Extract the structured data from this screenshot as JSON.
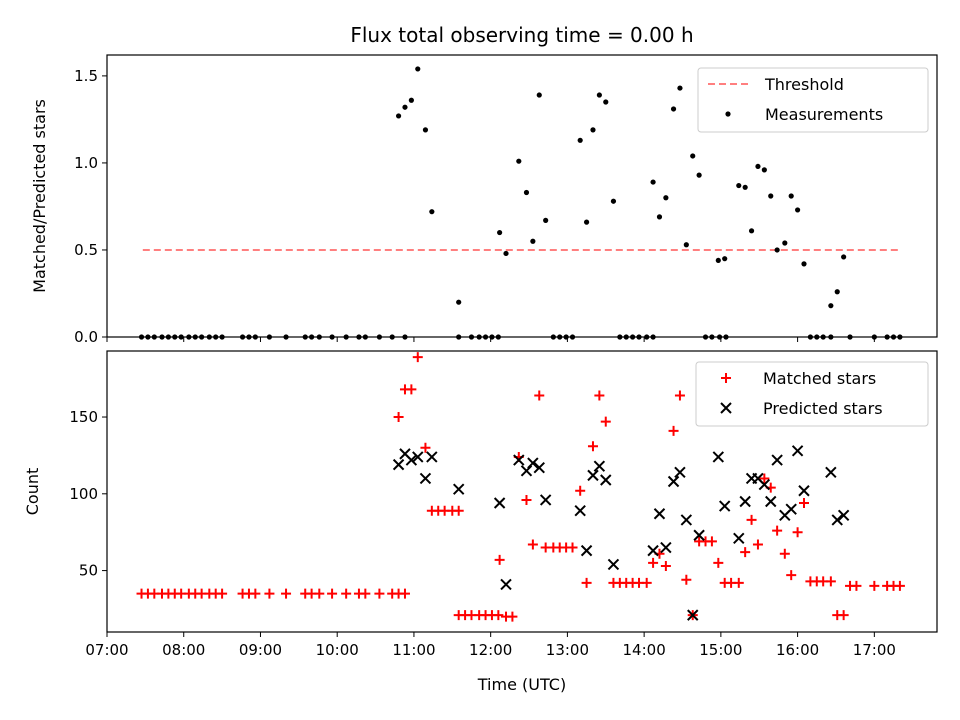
{
  "figure": {
    "title": "Flux total observing time = 0.00 h"
  },
  "chart_data": [
    {
      "type": "scatter",
      "title": "Flux total observing time = 0.00 h",
      "ylabel": "Matched/Predicted stars",
      "xlim": [
        "07:00",
        "17:49"
      ],
      "ylim": [
        0,
        1.62
      ],
      "yticks": [
        "0.0",
        "0.5",
        "1.0",
        "1.5"
      ],
      "xticks": [
        "07:00",
        "08:00",
        "09:00",
        "10:00",
        "11:00",
        "12:00",
        "13:00",
        "14:00",
        "15:00",
        "16:00",
        "17:00"
      ],
      "legend": {
        "placement": "top-right",
        "entries": [
          "Threshold",
          "Measurements"
        ]
      },
      "series": [
        {
          "name": "Threshold",
          "style": "dashed-line",
          "color": "#ff7f7f",
          "points": [
            [
              "07:28",
              0.5
            ],
            [
              "17:20",
              0.5
            ]
          ]
        },
        {
          "name": "Measurements",
          "style": "dot",
          "color": "#000000",
          "points": [
            [
              "07:27",
              0
            ],
            [
              "07:32",
              0
            ],
            [
              "07:37",
              0
            ],
            [
              "07:43",
              0
            ],
            [
              "07:48",
              0
            ],
            [
              "07:53",
              0
            ],
            [
              "07:58",
              0
            ],
            [
              "08:04",
              0
            ],
            [
              "08:09",
              0
            ],
            [
              "08:14",
              0
            ],
            [
              "08:20",
              0
            ],
            [
              "08:25",
              0
            ],
            [
              "08:30",
              0
            ],
            [
              "08:46",
              0
            ],
            [
              "08:51",
              0
            ],
            [
              "08:56",
              0
            ],
            [
              "09:07",
              0
            ],
            [
              "09:20",
              0
            ],
            [
              "09:35",
              0
            ],
            [
              "09:40",
              0
            ],
            [
              "09:46",
              0
            ],
            [
              "09:56",
              0
            ],
            [
              "10:07",
              0
            ],
            [
              "10:17",
              0
            ],
            [
              "10:22",
              0
            ],
            [
              "10:33",
              0
            ],
            [
              "10:43",
              0
            ],
            [
              "10:53",
              0
            ],
            [
              "10:48",
              1.27
            ],
            [
              "10:53",
              1.32
            ],
            [
              "10:58",
              1.36
            ],
            [
              "11:03",
              1.54
            ],
            [
              "11:09",
              1.19
            ],
            [
              "11:14",
              0.72
            ],
            [
              "11:35",
              0
            ],
            [
              "11:45",
              0
            ],
            [
              "11:51",
              0
            ],
            [
              "11:56",
              0
            ],
            [
              "12:01",
              0
            ],
            [
              "12:06",
              0
            ],
            [
              "11:35",
              0.2
            ],
            [
              "12:07",
              0.6
            ],
            [
              "12:12",
              0.48
            ],
            [
              "12:22",
              1.01
            ],
            [
              "12:28",
              0.83
            ],
            [
              "12:33",
              0.55
            ],
            [
              "12:38",
              1.39
            ],
            [
              "12:43",
              0.67
            ],
            [
              "12:49",
              0
            ],
            [
              "12:54",
              0
            ],
            [
              "12:59",
              0
            ],
            [
              "13:04",
              0
            ],
            [
              "13:10",
              1.13
            ],
            [
              "13:15",
              0.66
            ],
            [
              "13:20",
              1.19
            ],
            [
              "13:25",
              1.39
            ],
            [
              "13:30",
              1.35
            ],
            [
              "13:36",
              0.78
            ],
            [
              "13:41",
              0
            ],
            [
              "13:46",
              0
            ],
            [
              "13:51",
              0
            ],
            [
              "13:56",
              0
            ],
            [
              "14:02",
              0
            ],
            [
              "14:07",
              0
            ],
            [
              "14:07",
              0.89
            ],
            [
              "14:12",
              0.69
            ],
            [
              "14:17",
              0.8
            ],
            [
              "14:23",
              1.31
            ],
            [
              "14:28",
              1.43
            ],
            [
              "14:33",
              0.53
            ],
            [
              "14:38",
              1.04
            ],
            [
              "14:43",
              0.93
            ],
            [
              "14:48",
              0
            ],
            [
              "14:53",
              0
            ],
            [
              "14:59",
              0
            ],
            [
              "15:04",
              0
            ],
            [
              "14:58",
              0.44
            ],
            [
              "15:03",
              0.45
            ],
            [
              "15:14",
              0.87
            ],
            [
              "15:19",
              0.86
            ],
            [
              "15:24",
              0.61
            ],
            [
              "15:29",
              0.98
            ],
            [
              "15:34",
              0.96
            ],
            [
              "15:39",
              0.81
            ],
            [
              "15:44",
              0.5
            ],
            [
              "15:50",
              0.54
            ],
            [
              "15:55",
              0.81
            ],
            [
              "16:00",
              0.73
            ],
            [
              "16:05",
              0.42
            ],
            [
              "16:10",
              0
            ],
            [
              "16:15",
              0
            ],
            [
              "16:20",
              0
            ],
            [
              "16:26",
              0
            ],
            [
              "16:26",
              0.18
            ],
            [
              "16:31",
              0.26
            ],
            [
              "16:36",
              0.46
            ],
            [
              "16:41",
              0
            ],
            [
              "17:00",
              0
            ],
            [
              "17:10",
              0
            ],
            [
              "17:15",
              0
            ],
            [
              "17:20",
              0
            ]
          ]
        }
      ]
    },
    {
      "type": "scatter",
      "xlabel": "Time (UTC)",
      "ylabel": "Count",
      "xlim": [
        "07:00",
        "17:49"
      ],
      "ylim": [
        10,
        193
      ],
      "yticks": [
        "50",
        "100",
        "150"
      ],
      "xticks": [
        "07:00",
        "08:00",
        "09:00",
        "10:00",
        "11:00",
        "12:00",
        "13:00",
        "14:00",
        "15:00",
        "16:00",
        "17:00"
      ],
      "legend": {
        "placement": "top-right",
        "entries": [
          "Matched stars",
          "Predicted stars"
        ]
      },
      "series": [
        {
          "name": "Matched stars",
          "marker": "plus",
          "color": "#ff0000",
          "points": [
            [
              "07:27",
              35
            ],
            [
              "07:32",
              35
            ],
            [
              "07:37",
              35
            ],
            [
              "07:43",
              35
            ],
            [
              "07:48",
              35
            ],
            [
              "07:53",
              35
            ],
            [
              "07:58",
              35
            ],
            [
              "08:04",
              35
            ],
            [
              "08:09",
              35
            ],
            [
              "08:14",
              35
            ],
            [
              "08:20",
              35
            ],
            [
              "08:25",
              35
            ],
            [
              "08:30",
              35
            ],
            [
              "08:46",
              35
            ],
            [
              "08:51",
              35
            ],
            [
              "08:56",
              35
            ],
            [
              "09:07",
              35
            ],
            [
              "09:20",
              35
            ],
            [
              "09:35",
              35
            ],
            [
              "09:40",
              35
            ],
            [
              "09:46",
              35
            ],
            [
              "09:56",
              35
            ],
            [
              "10:07",
              35
            ],
            [
              "10:17",
              35
            ],
            [
              "10:22",
              35
            ],
            [
              "10:33",
              35
            ],
            [
              "10:43",
              35
            ],
            [
              "10:48",
              35
            ],
            [
              "10:53",
              35
            ],
            [
              "10:48",
              150
            ],
            [
              "10:53",
              168
            ],
            [
              "10:58",
              168
            ],
            [
              "11:03",
              189
            ],
            [
              "11:09",
              130
            ],
            [
              "11:14",
              89
            ],
            [
              "11:19",
              89
            ],
            [
              "11:24",
              89
            ],
            [
              "11:30",
              89
            ],
            [
              "11:35",
              89
            ],
            [
              "11:35",
              21
            ],
            [
              "11:40",
              21
            ],
            [
              "11:45",
              21
            ],
            [
              "11:51",
              21
            ],
            [
              "11:56",
              21
            ],
            [
              "12:01",
              21
            ],
            [
              "12:06",
              21
            ],
            [
              "12:07",
              57
            ],
            [
              "12:12",
              20
            ],
            [
              "12:17",
              20
            ],
            [
              "12:22",
              124
            ],
            [
              "12:28",
              96
            ],
            [
              "12:33",
              67
            ],
            [
              "12:38",
              164
            ],
            [
              "12:43",
              65
            ],
            [
              "12:49",
              65
            ],
            [
              "12:54",
              65
            ],
            [
              "12:59",
              65
            ],
            [
              "13:04",
              65
            ],
            [
              "13:10",
              102
            ],
            [
              "13:15",
              42
            ],
            [
              "13:20",
              131
            ],
            [
              "13:25",
              164
            ],
            [
              "13:30",
              147
            ],
            [
              "13:36",
              42
            ],
            [
              "13:41",
              42
            ],
            [
              "13:46",
              42
            ],
            [
              "13:51",
              42
            ],
            [
              "13:56",
              42
            ],
            [
              "14:02",
              42
            ],
            [
              "14:07",
              55
            ],
            [
              "14:12",
              61
            ],
            [
              "14:17",
              53
            ],
            [
              "14:23",
              141
            ],
            [
              "14:28",
              164
            ],
            [
              "14:33",
              44
            ],
            [
              "14:38",
              21
            ],
            [
              "14:43",
              69
            ],
            [
              "14:48",
              69
            ],
            [
              "14:53",
              69
            ],
            [
              "14:58",
              55
            ],
            [
              "15:03",
              42
            ],
            [
              "15:08",
              42
            ],
            [
              "15:14",
              42
            ],
            [
              "15:19",
              62
            ],
            [
              "15:24",
              83
            ],
            [
              "15:29",
              67
            ],
            [
              "15:34",
              110
            ],
            [
              "15:39",
              104
            ],
            [
              "15:44",
              76
            ],
            [
              "15:50",
              61
            ],
            [
              "15:55",
              47
            ],
            [
              "16:00",
              75
            ],
            [
              "16:05",
              94
            ],
            [
              "16:10",
              43
            ],
            [
              "16:15",
              43
            ],
            [
              "16:20",
              43
            ],
            [
              "16:26",
              43
            ],
            [
              "16:31",
              21
            ],
            [
              "16:36",
              21
            ],
            [
              "16:41",
              40
            ],
            [
              "16:46",
              40
            ],
            [
              "17:00",
              40
            ],
            [
              "17:10",
              40
            ],
            [
              "17:15",
              40
            ],
            [
              "17:20",
              40
            ]
          ]
        },
        {
          "name": "Predicted stars",
          "marker": "x",
          "color": "#000000",
          "points": [
            [
              "10:48",
              119
            ],
            [
              "10:53",
              126
            ],
            [
              "10:58",
              122
            ],
            [
              "11:03",
              124
            ],
            [
              "11:09",
              110
            ],
            [
              "11:14",
              124
            ],
            [
              "11:35",
              103
            ],
            [
              "12:07",
              94
            ],
            [
              "12:12",
              41
            ],
            [
              "12:22",
              122
            ],
            [
              "12:28",
              115
            ],
            [
              "12:33",
              120
            ],
            [
              "12:38",
              117
            ],
            [
              "12:43",
              96
            ],
            [
              "13:10",
              89
            ],
            [
              "13:15",
              63
            ],
            [
              "13:20",
              112
            ],
            [
              "13:25",
              118
            ],
            [
              "13:30",
              109
            ],
            [
              "13:36",
              54
            ],
            [
              "14:07",
              63
            ],
            [
              "14:12",
              87
            ],
            [
              "14:17",
              65
            ],
            [
              "14:23",
              108
            ],
            [
              "14:28",
              114
            ],
            [
              "14:33",
              83
            ],
            [
              "14:38",
              21
            ],
            [
              "14:43",
              73
            ],
            [
              "14:58",
              124
            ],
            [
              "15:03",
              92
            ],
            [
              "15:14",
              71
            ],
            [
              "15:19",
              95
            ],
            [
              "15:24",
              110
            ],
            [
              "15:29",
              110
            ],
            [
              "15:34",
              106
            ],
            [
              "15:39",
              95
            ],
            [
              "15:44",
              122
            ],
            [
              "15:50",
              86
            ],
            [
              "15:55",
              90
            ],
            [
              "16:00",
              128
            ],
            [
              "16:05",
              102
            ],
            [
              "16:26",
              114
            ],
            [
              "16:31",
              83
            ],
            [
              "16:36",
              86
            ]
          ]
        }
      ]
    }
  ]
}
